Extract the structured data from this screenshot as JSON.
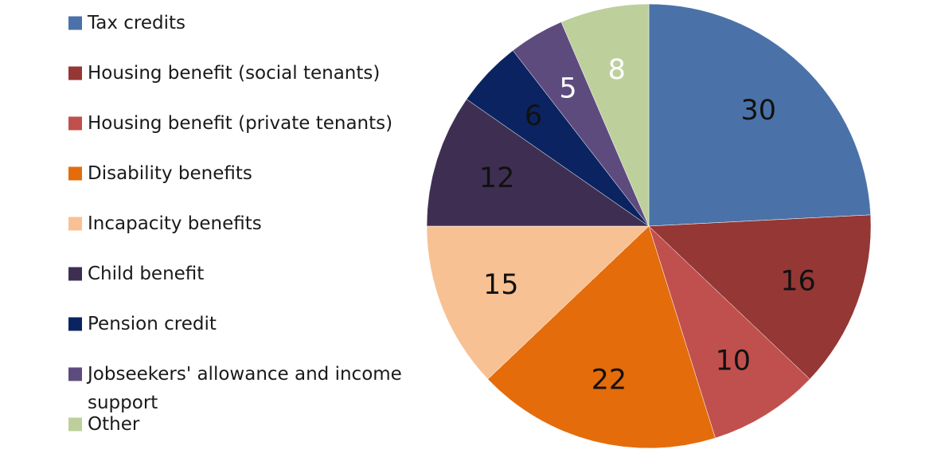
{
  "chart_data": {
    "type": "pie",
    "title": "",
    "legend_position": "left",
    "categories": [
      "Tax credits",
      "Housing benefit (social tenants)",
      "Housing benefit (private tenants)",
      "Disability benefits",
      "Incapacity benefits",
      "Child benefit",
      "Pension credit",
      "Jobseekers' allowance and income support",
      "Other"
    ],
    "values": [
      30,
      16,
      10,
      22,
      15,
      12,
      6,
      5,
      8
    ],
    "colors": [
      "#4A72A8",
      "#953735",
      "#C0504D",
      "#E46C0A",
      "#F8C193",
      "#3E2F52",
      "#0B2461",
      "#5E4B7E",
      "#BDD09C"
    ],
    "label_colors": [
      "#111111",
      "#111111",
      "#111111",
      "#111111",
      "#111111",
      "#111111",
      "#111111",
      "#ffffff",
      "#ffffff"
    ],
    "legend_lines": [
      [
        "Tax credits"
      ],
      [
        "Housing benefit (social tenants)"
      ],
      [
        "Housing benefit (private tenants)"
      ],
      [
        "Disability benefits"
      ],
      [
        "Incapacity benefits"
      ],
      [
        "Child benefit"
      ],
      [
        "Pension credit"
      ],
      [
        "Jobseekers' allowance and income",
        "support"
      ],
      [
        "Other"
      ]
    ]
  }
}
